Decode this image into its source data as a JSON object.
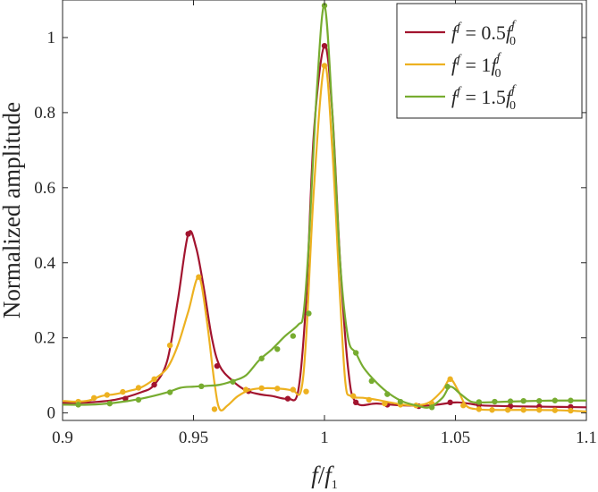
{
  "chart_data": {
    "type": "line",
    "xlabel": "f/f1",
    "ylabel": "Normalized amplitude",
    "xlim": [
      0.9,
      1.1
    ],
    "ylim": [
      -0.02,
      1.1
    ],
    "xticks": [
      0.9,
      0.95,
      1,
      1.05,
      1.1
    ],
    "xtick_labels": [
      "0.9",
      "0.95",
      "1",
      "1.05",
      "1.1"
    ],
    "yticks": [
      0,
      0.2,
      0.4,
      0.6,
      0.8,
      1
    ],
    "ytick_labels": [
      "0",
      "0.2",
      "0.4",
      "0.6",
      "0.8",
      "1"
    ],
    "grid": false,
    "legend_position": "top-right",
    "series": [
      {
        "name": "f^f = 0.5 f_0^f",
        "color": "#a2142f",
        "curve": [
          [
            0.9,
            0.027
          ],
          [
            0.91,
            0.028
          ],
          [
            0.92,
            0.035
          ],
          [
            0.93,
            0.055
          ],
          [
            0.935,
            0.075
          ],
          [
            0.94,
            0.14
          ],
          [
            0.944,
            0.3
          ],
          [
            0.948,
            0.477
          ],
          [
            0.951,
            0.44
          ],
          [
            0.954,
            0.33
          ],
          [
            0.957,
            0.2
          ],
          [
            0.96,
            0.125
          ],
          [
            0.965,
            0.085
          ],
          [
            0.97,
            0.06
          ],
          [
            0.975,
            0.05
          ],
          [
            0.98,
            0.045
          ],
          [
            0.986,
            0.038
          ],
          [
            0.99,
            0.06
          ],
          [
            0.993,
            0.3
          ],
          [
            0.996,
            0.75
          ],
          [
            1.0,
            0.978
          ],
          [
            1.003,
            0.8
          ],
          [
            1.006,
            0.4
          ],
          [
            1.009,
            0.12
          ],
          [
            1.012,
            0.028
          ],
          [
            1.02,
            0.025
          ],
          [
            1.03,
            0.02
          ],
          [
            1.04,
            0.02
          ],
          [
            1.05,
            0.028
          ],
          [
            1.055,
            0.025
          ],
          [
            1.06,
            0.02
          ],
          [
            1.07,
            0.018
          ],
          [
            1.08,
            0.017
          ],
          [
            1.09,
            0.016
          ],
          [
            1.1,
            0.015
          ]
        ],
        "markers": [
          [
            0.906,
            0.023
          ],
          [
            0.924,
            0.038
          ],
          [
            0.935,
            0.075
          ],
          [
            0.948,
            0.477
          ],
          [
            0.959,
            0.125
          ],
          [
            0.971,
            0.058
          ],
          [
            0.986,
            0.038
          ],
          [
            1.0,
            0.978
          ],
          [
            1.012,
            0.028
          ],
          [
            1.024,
            0.022
          ],
          [
            1.036,
            0.018
          ],
          [
            1.048,
            0.028
          ],
          [
            1.059,
            0.022
          ],
          [
            1.071,
            0.018
          ],
          [
            1.082,
            0.017
          ],
          [
            1.094,
            0.016
          ]
        ]
      },
      {
        "name": "f^f = 1 f_0^f",
        "color": "#edb120",
        "curve": [
          [
            0.9,
            0.032
          ],
          [
            0.905,
            0.03
          ],
          [
            0.91,
            0.033
          ],
          [
            0.915,
            0.045
          ],
          [
            0.92,
            0.05
          ],
          [
            0.925,
            0.058
          ],
          [
            0.93,
            0.068
          ],
          [
            0.935,
            0.09
          ],
          [
            0.94,
            0.12
          ],
          [
            0.944,
            0.18
          ],
          [
            0.948,
            0.27
          ],
          [
            0.952,
            0.362
          ],
          [
            0.955,
            0.25
          ],
          [
            0.958,
            0.08
          ],
          [
            0.96,
            0.01
          ],
          [
            0.963,
            0.02
          ],
          [
            0.967,
            0.045
          ],
          [
            0.972,
            0.062
          ],
          [
            0.978,
            0.066
          ],
          [
            0.984,
            0.064
          ],
          [
            0.988,
            0.06
          ],
          [
            0.991,
            0.058
          ],
          [
            0.993,
            0.2
          ],
          [
            0.996,
            0.6
          ],
          [
            1.0,
            0.925
          ],
          [
            1.003,
            0.7
          ],
          [
            1.006,
            0.3
          ],
          [
            1.008,
            0.08
          ],
          [
            1.01,
            0.045
          ],
          [
            1.015,
            0.04
          ],
          [
            1.02,
            0.035
          ],
          [
            1.025,
            0.028
          ],
          [
            1.03,
            0.022
          ],
          [
            1.035,
            0.02
          ],
          [
            1.04,
            0.028
          ],
          [
            1.045,
            0.06
          ],
          [
            1.048,
            0.09
          ],
          [
            1.051,
            0.06
          ],
          [
            1.054,
            0.02
          ],
          [
            1.058,
            0.01
          ],
          [
            1.065,
            0.008
          ],
          [
            1.07,
            0.008
          ],
          [
            1.08,
            0.008
          ],
          [
            1.09,
            0.007
          ],
          [
            1.1,
            0.004
          ]
        ],
        "markers": [
          [
            0.906,
            0.03
          ],
          [
            0.912,
            0.04
          ],
          [
            0.917,
            0.048
          ],
          [
            0.923,
            0.056
          ],
          [
            0.929,
            0.067
          ],
          [
            0.935,
            0.09
          ],
          [
            0.941,
            0.18
          ],
          [
            0.952,
            0.362
          ],
          [
            0.958,
            0.01
          ],
          [
            0.97,
            0.062
          ],
          [
            0.976,
            0.066
          ],
          [
            0.982,
            0.065
          ],
          [
            0.988,
            0.062
          ],
          [
            0.993,
            0.057
          ],
          [
            1.0,
            0.925
          ],
          [
            1.011,
            0.045
          ],
          [
            1.017,
            0.035
          ],
          [
            1.023,
            0.025
          ],
          [
            1.029,
            0.022
          ],
          [
            1.035,
            0.02
          ],
          [
            1.041,
            0.025
          ],
          [
            1.048,
            0.09
          ],
          [
            1.053,
            0.02
          ],
          [
            1.059,
            0.01
          ],
          [
            1.064,
            0.008
          ],
          [
            1.07,
            0.008
          ],
          [
            1.076,
            0.008
          ],
          [
            1.082,
            0.008
          ],
          [
            1.088,
            0.007
          ],
          [
            1.094,
            0.006
          ]
        ]
      },
      {
        "name": "f^f = 1.5 f_0^f",
        "color": "#77ac30",
        "curve": [
          [
            0.9,
            0.022
          ],
          [
            0.91,
            0.022
          ],
          [
            0.92,
            0.027
          ],
          [
            0.93,
            0.038
          ],
          [
            0.94,
            0.055
          ],
          [
            0.945,
            0.067
          ],
          [
            0.95,
            0.07
          ],
          [
            0.955,
            0.072
          ],
          [
            0.96,
            0.075
          ],
          [
            0.965,
            0.085
          ],
          [
            0.97,
            0.1
          ],
          [
            0.975,
            0.14
          ],
          [
            0.98,
            0.17
          ],
          [
            0.985,
            0.205
          ],
          [
            0.99,
            0.235
          ],
          [
            0.992,
            0.265
          ],
          [
            0.994,
            0.45
          ],
          [
            0.997,
            0.85
          ],
          [
            1.0,
            1.085
          ],
          [
            1.003,
            0.8
          ],
          [
            1.006,
            0.4
          ],
          [
            1.009,
            0.2
          ],
          [
            1.012,
            0.16
          ],
          [
            1.015,
            0.12
          ],
          [
            1.02,
            0.08
          ],
          [
            1.025,
            0.05
          ],
          [
            1.03,
            0.03
          ],
          [
            1.035,
            0.02
          ],
          [
            1.04,
            0.015
          ],
          [
            1.045,
            0.04
          ],
          [
            1.048,
            0.07
          ],
          [
            1.052,
            0.05
          ],
          [
            1.056,
            0.03
          ],
          [
            1.06,
            0.028
          ],
          [
            1.07,
            0.03
          ],
          [
            1.08,
            0.032
          ],
          [
            1.09,
            0.033
          ],
          [
            1.1,
            0.033
          ]
        ],
        "markers": [
          [
            0.906,
            0.022
          ],
          [
            0.918,
            0.025
          ],
          [
            0.929,
            0.035
          ],
          [
            0.941,
            0.055
          ],
          [
            0.953,
            0.071
          ],
          [
            0.965,
            0.083
          ],
          [
            0.976,
            0.145
          ],
          [
            0.982,
            0.17
          ],
          [
            0.988,
            0.205
          ],
          [
            0.994,
            0.265
          ],
          [
            1.0,
            1.085
          ],
          [
            1.012,
            0.16
          ],
          [
            1.018,
            0.085
          ],
          [
            1.024,
            0.05
          ],
          [
            1.029,
            0.03
          ],
          [
            1.041,
            0.015
          ],
          [
            1.047,
            0.07
          ],
          [
            1.059,
            0.029
          ],
          [
            1.065,
            0.03
          ],
          [
            1.071,
            0.031
          ],
          [
            1.076,
            0.032
          ],
          [
            1.082,
            0.032
          ],
          [
            1.088,
            0.033
          ],
          [
            1.094,
            0.033
          ]
        ]
      }
    ]
  },
  "legend": [
    {
      "base": "f",
      "sup": "f",
      "eq": " = 0.5",
      "sub": "0",
      "sup2": "f"
    },
    {
      "base": "f",
      "sup": "f",
      "eq": " = 1",
      "sub": "0",
      "sup2": "f"
    },
    {
      "base": "f",
      "sup": "f",
      "eq": " = 1.5",
      "sub": "0",
      "sup2": "f"
    }
  ],
  "axis_label_x": {
    "base": "f",
    "sep": "/",
    "base2": "f",
    "sub": "1"
  }
}
